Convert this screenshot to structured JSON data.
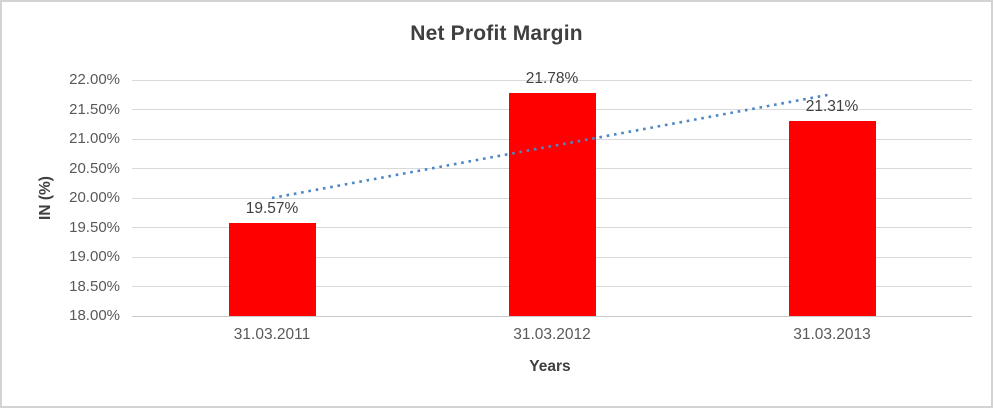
{
  "chart_data": {
    "type": "bar",
    "title": "Net Profit Margin",
    "xlabel": "Years",
    "ylabel": "IN (%)",
    "categories": [
      "31.03.2011",
      "31.03.2012",
      "31.03.2013"
    ],
    "values": [
      19.57,
      21.78,
      21.31
    ],
    "data_labels": [
      "19.57%",
      "21.78%",
      "21.31%"
    ],
    "ylim": [
      18.0,
      22.0
    ],
    "yticks": [
      {
        "value": 18.0,
        "label": "18.00%"
      },
      {
        "value": 18.5,
        "label": "18.50%"
      },
      {
        "value": 19.0,
        "label": "19.00%"
      },
      {
        "value": 19.5,
        "label": "19.50%"
      },
      {
        "value": 20.0,
        "label": "20.00%"
      },
      {
        "value": 20.5,
        "label": "20.50%"
      },
      {
        "value": 21.0,
        "label": "21.00%"
      },
      {
        "value": 21.5,
        "label": "21.50%"
      },
      {
        "value": 22.0,
        "label": "22.00%"
      }
    ],
    "grid": true,
    "legend": "none",
    "trendline": {
      "type": "linear",
      "style": "dotted",
      "start_value": 20.0,
      "end_value": 21.76
    }
  },
  "colors": {
    "bar": "#FF0000",
    "trendline": "#4C86C6",
    "grid": "#D9D9D9",
    "axis_line": "#C9C9C9",
    "title_text": "#3F3F3F",
    "tick_text": "#595959",
    "frame": "#D3D3D3",
    "background": "#FFFFFF"
  }
}
